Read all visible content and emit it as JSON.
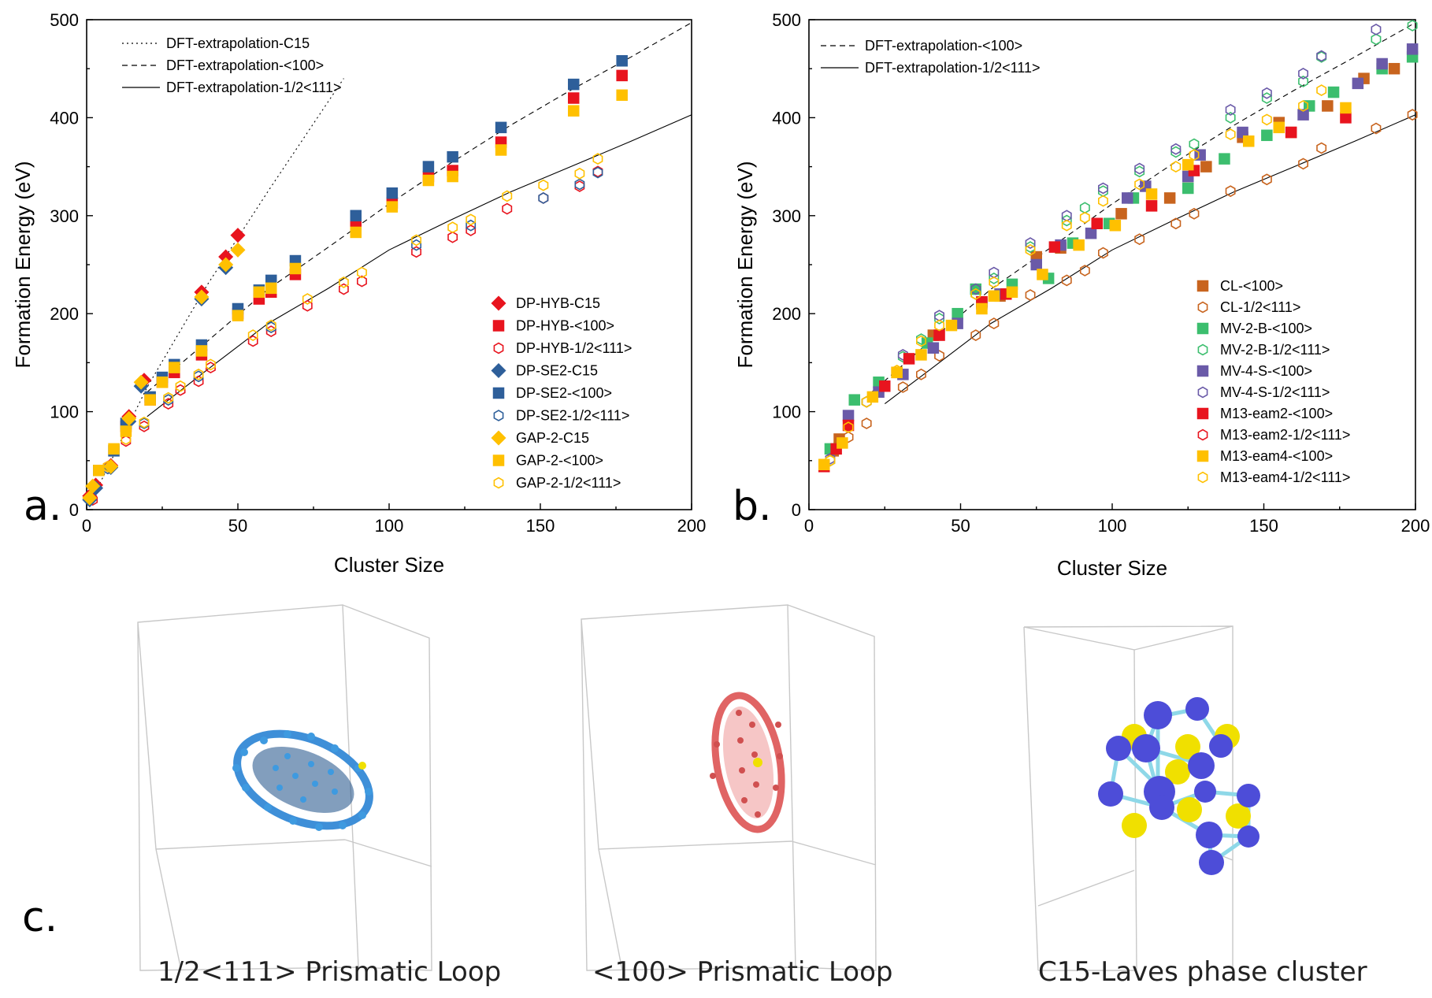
{
  "chart_data": [
    {
      "panel": "a.",
      "type": "scatter",
      "xlabel": "Cluster Size",
      "ylabel": "Formation Energy (eV)",
      "xlim": [
        0,
        200
      ],
      "ylim": [
        0,
        500
      ],
      "xticks": [
        "0",
        "50",
        "100",
        "150",
        "200"
      ],
      "yticks": [
        "0",
        "100",
        "200",
        "300",
        "400",
        "500"
      ],
      "lines": [
        {
          "name": "DFT-extrapolation-C15",
          "dash": "dotted",
          "x": [
            3,
            20,
            40,
            60,
            85
          ],
          "y": [
            18,
            125,
            230,
            325,
            440
          ]
        },
        {
          "name": "DFT-extrapolation-<100>",
          "dash": "dashed",
          "x": [
            20,
            40,
            60,
            80,
            100,
            120,
            140,
            160,
            180,
            200
          ],
          "y": [
            120,
            172,
            225,
            268,
            312,
            353,
            392,
            428,
            462,
            497
          ]
        },
        {
          "name": "DFT-extrapolation-1/2<111>",
          "dash": "solid",
          "x": [
            20,
            40,
            60,
            80,
            100,
            120,
            140,
            160,
            180,
            200
          ],
          "y": [
            95,
            143,
            190,
            226,
            265,
            295,
            324,
            350,
            376,
            403
          ]
        }
      ],
      "series": [
        {
          "name": "DP-HYB-C15",
          "marker": "diamond",
          "color": "#e8141e",
          "filled": true,
          "x": [
            1,
            3,
            8,
            14,
            19,
            38,
            46,
            50
          ],
          "y": [
            14,
            25,
            45,
            95,
            132,
            222,
            258,
            280
          ]
        },
        {
          "name": "DP-HYB-<100>",
          "marker": "square",
          "color": "#e8141e",
          "filled": true,
          "x": [
            13,
            21,
            25,
            29,
            38,
            50,
            57,
            61,
            69,
            89,
            101,
            113,
            121,
            137,
            161,
            177
          ],
          "y": [
            85,
            112,
            130,
            140,
            158,
            200,
            215,
            222,
            240,
            290,
            313,
            340,
            346,
            375,
            420,
            443
          ]
        },
        {
          "name": "DP-HYB-1/2<111>",
          "marker": "hexagon",
          "color": "#e8141e",
          "filled": false,
          "x": [
            2,
            7,
            13,
            19,
            27,
            31,
            37,
            41,
            55,
            61,
            73,
            85,
            91,
            109,
            121,
            127,
            139,
            151,
            163,
            169
          ],
          "y": [
            10,
            44,
            70,
            85,
            108,
            122,
            131,
            145,
            172,
            182,
            208,
            225,
            233,
            263,
            278,
            285,
            307,
            318,
            330,
            345
          ]
        },
        {
          "name": "DP-SE2-C15",
          "marker": "diamond",
          "color": "#2e5f9a",
          "filled": true,
          "x": [
            1,
            3,
            8,
            14,
            18,
            38,
            46
          ],
          "y": [
            10,
            22,
            43,
            90,
            126,
            215,
            247
          ]
        },
        {
          "name": "DP-SE2-<100>",
          "marker": "square",
          "color": "#2e5f9a",
          "filled": true,
          "x": [
            4,
            9,
            13,
            21,
            25,
            29,
            38,
            50,
            57,
            61,
            69,
            89,
            101,
            113,
            121,
            137,
            161,
            177
          ],
          "y": [
            40,
            60,
            88,
            115,
            135,
            148,
            168,
            205,
            224,
            234,
            254,
            300,
            323,
            350,
            360,
            390,
            434,
            458
          ]
        },
        {
          "name": "DP-SE2-1/2<111>",
          "marker": "hexagon",
          "color": "#2e5f9a",
          "filled": false,
          "x": [
            7,
            19,
            27,
            37,
            61,
            109,
            127,
            151,
            163,
            169
          ],
          "y": [
            42,
            88,
            112,
            136,
            186,
            270,
            290,
            318,
            332,
            344
          ]
        },
        {
          "name": "GAP-2-C15",
          "marker": "diamond",
          "color": "#ffc000",
          "filled": true,
          "x": [
            1,
            2,
            8,
            14,
            18,
            38,
            46,
            50
          ],
          "y": [
            12,
            24,
            44,
            93,
            130,
            217,
            250,
            265
          ]
        },
        {
          "name": "GAP-2-<100>",
          "marker": "square",
          "color": "#ffc000",
          "filled": true,
          "x": [
            4,
            9,
            13,
            21,
            25,
            29,
            38,
            50,
            57,
            61,
            69,
            89,
            101,
            113,
            121,
            137,
            161,
            177
          ],
          "y": [
            40,
            62,
            80,
            112,
            130,
            145,
            162,
            198,
            222,
            226,
            246,
            283,
            309,
            336,
            340,
            367,
            407,
            423
          ]
        },
        {
          "name": "GAP-2-1/2<111>",
          "marker": "hexagon",
          "color": "#ffc000",
          "filled": false,
          "x": [
            7,
            13,
            19,
            27,
            31,
            37,
            41,
            55,
            61,
            73,
            85,
            91,
            109,
            121,
            127,
            139,
            151,
            163,
            169
          ],
          "y": [
            44,
            72,
            89,
            114,
            126,
            138,
            148,
            178,
            188,
            215,
            232,
            242,
            275,
            288,
            296,
            320,
            331,
            343,
            358
          ]
        }
      ]
    },
    {
      "panel": "b.",
      "type": "scatter",
      "xlabel": "Cluster Size",
      "ylabel": "Formation Energy (eV)",
      "xlim": [
        0,
        200
      ],
      "ylim": [
        0,
        500
      ],
      "xticks": [
        "0",
        "50",
        "100",
        "150",
        "200"
      ],
      "yticks": [
        "0",
        "100",
        "200",
        "300",
        "400",
        "500"
      ],
      "lines": [
        {
          "name": "DFT-extrapolation-<100>",
          "dash": "dashed",
          "x": [
            20,
            40,
            60,
            80,
            100,
            120,
            140,
            160,
            180,
            200
          ],
          "y": [
            118,
            172,
            225,
            268,
            312,
            353,
            392,
            428,
            462,
            497
          ]
        },
        {
          "name": "DFT-extrapolation-1/2<111>",
          "dash": "solid",
          "x": [
            25,
            40,
            60,
            80,
            100,
            120,
            140,
            160,
            180,
            200
          ],
          "y": [
            108,
            143,
            190,
            226,
            265,
            295,
            324,
            350,
            376,
            403
          ]
        }
      ],
      "series": [
        {
          "name": "CL-<100>",
          "marker": "square",
          "color": "#c8641e",
          "filled": true,
          "x": [
            8,
            10,
            29,
            41,
            57,
            63,
            75,
            83,
            99,
            103,
            119,
            125,
            131,
            143,
            155,
            159,
            171,
            183,
            193
          ],
          "y": [
            60,
            72,
            140,
            178,
            212,
            218,
            258,
            267,
            292,
            302,
            318,
            340,
            350,
            380,
            395,
            385,
            412,
            440,
            450
          ]
        },
        {
          "name": "CL-1/2<111>",
          "marker": "hexagon",
          "color": "#c8641e",
          "filled": false,
          "x": [
            5,
            8,
            13,
            19,
            31,
            37,
            43,
            55,
            61,
            73,
            85,
            91,
            97,
            109,
            121,
            127,
            139,
            151,
            163,
            169,
            187,
            199
          ],
          "y": [
            46,
            62,
            74,
            88,
            125,
            138,
            157,
            178,
            190,
            219,
            234,
            244,
            262,
            276,
            292,
            302,
            325,
            337,
            353,
            369,
            389,
            403
          ]
        },
        {
          "name": "MV-2-B-<100>",
          "marker": "square",
          "color": "#3cbe6e",
          "filled": true,
          "x": [
            7,
            15,
            23,
            39,
            49,
            55,
            67,
            79,
            87,
            99,
            107,
            125,
            137,
            151,
            165,
            173,
            189,
            199
          ],
          "y": [
            62,
            112,
            130,
            170,
            200,
            225,
            230,
            236,
            272,
            292,
            318,
            328,
            358,
            382,
            412,
            426,
            450,
            462
          ]
        },
        {
          "name": "MV-2-B-1/2<111>",
          "marker": "hexagon",
          "color": "#3cbe6e",
          "filled": false,
          "x": [
            7,
            19,
            31,
            37,
            43,
            55,
            61,
            73,
            85,
            91,
            97,
            109,
            121,
            127,
            139,
            151,
            163,
            169,
            187,
            199
          ],
          "y": [
            50,
            110,
            156,
            174,
            195,
            220,
            236,
            268,
            295,
            308,
            325,
            345,
            365,
            373,
            400,
            420,
            437,
            462,
            480,
            494
          ]
        },
        {
          "name": "MV-4-S-<100>",
          "marker": "square",
          "color": "#6a5aa8",
          "filled": true,
          "x": [
            13,
            23,
            31,
            41,
            49,
            57,
            63,
            75,
            83,
            93,
            105,
            111,
            125,
            129,
            143,
            163,
            181,
            189,
            199
          ],
          "y": [
            96,
            120,
            138,
            165,
            190,
            210,
            220,
            250,
            270,
            282,
            318,
            330,
            340,
            362,
            385,
            403,
            435,
            455,
            470
          ]
        },
        {
          "name": "MV-4-S-1/2<111>",
          "marker": "hexagon",
          "color": "#6a5aa8",
          "filled": false,
          "x": [
            7,
            19,
            31,
            43,
            55,
            61,
            73,
            85,
            97,
            109,
            121,
            139,
            151,
            163,
            169,
            187
          ],
          "y": [
            52,
            110,
            158,
            198,
            225,
            242,
            272,
            300,
            328,
            348,
            368,
            408,
            425,
            445,
            463,
            490
          ]
        },
        {
          "name": "M13-eam2-<100>",
          "marker": "square",
          "color": "#e8141e",
          "filled": true,
          "x": [
            5,
            9,
            13,
            25,
            33,
            43,
            57,
            65,
            81,
            95,
            113,
            127,
            159,
            177
          ],
          "y": [
            44,
            62,
            86,
            126,
            154,
            178,
            212,
            220,
            268,
            292,
            310,
            346,
            385,
            400
          ]
        },
        {
          "name": "M13-eam2-1/2<111>",
          "marker": "hexagon",
          "color": "#e8141e",
          "filled": false,
          "x": [],
          "y": []
        },
        {
          "name": "M13-eam4-<100>",
          "marker": "square",
          "color": "#ffc000",
          "filled": true,
          "x": [
            5,
            11,
            21,
            29,
            37,
            47,
            57,
            61,
            67,
            77,
            89,
            101,
            113,
            125,
            145,
            155,
            177
          ],
          "y": [
            46,
            68,
            115,
            140,
            158,
            188,
            205,
            218,
            222,
            240,
            270,
            290,
            322,
            352,
            376,
            390,
            410
          ]
        },
        {
          "name": "M13-eam4-1/2<111>",
          "marker": "hexagon",
          "color": "#ffc000",
          "filled": false,
          "x": [
            7,
            13,
            19,
            29,
            37,
            43,
            55,
            61,
            73,
            85,
            91,
            97,
            109,
            121,
            127,
            139,
            151,
            163,
            169
          ],
          "y": [
            50,
            84,
            110,
            142,
            172,
            188,
            220,
            232,
            265,
            290,
            298,
            315,
            332,
            350,
            362,
            383,
            398,
            412,
            428
          ]
        }
      ]
    }
  ],
  "panel_c": {
    "label": "c.",
    "captions": [
      "1/2<111> Prismatic Loop",
      "<100> Prismatic Loop",
      "C15-Laves phase cluster"
    ]
  },
  "colors": {
    "loop_111": "#3e8fd8",
    "loop_100": "#e06464",
    "c15_blue": "#4d4dd8",
    "c15_yellow": "#f0e000",
    "bond": "#8ed8e8"
  }
}
